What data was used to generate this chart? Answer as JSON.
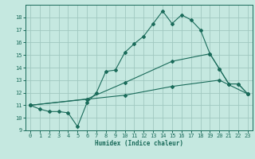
{
  "xlabel": "Humidex (Indice chaleur)",
  "bg_color": "#c5e8e0",
  "grid_color": "#a0c8c0",
  "line_color": "#1a6b5a",
  "xlim": [
    -0.5,
    23.5
  ],
  "ylim": [
    9,
    19
  ],
  "yticks": [
    9,
    10,
    11,
    12,
    13,
    14,
    15,
    16,
    17,
    18
  ],
  "xticks": [
    0,
    1,
    2,
    3,
    4,
    5,
    6,
    7,
    8,
    9,
    10,
    11,
    12,
    13,
    14,
    15,
    16,
    17,
    18,
    19,
    20,
    21,
    22,
    23
  ],
  "lines": [
    {
      "x": [
        0,
        1,
        2,
        3,
        4,
        5,
        6,
        7,
        8,
        9,
        10,
        11,
        12,
        13,
        14,
        15,
        16,
        17,
        18,
        19,
        20,
        21,
        22,
        23
      ],
      "y": [
        11,
        10.7,
        10.5,
        10.5,
        10.4,
        9.3,
        11.2,
        12.0,
        13.7,
        13.8,
        15.2,
        15.9,
        16.5,
        17.5,
        18.5,
        17.5,
        18.2,
        17.8,
        17.0,
        15.1,
        13.9,
        12.7,
        12.7,
        11.9
      ]
    },
    {
      "x": [
        0,
        6,
        10,
        15,
        19,
        20,
        21,
        22,
        23
      ],
      "y": [
        11,
        11.5,
        12.8,
        14.5,
        15.1,
        13.9,
        12.7,
        12.7,
        11.9
      ]
    },
    {
      "x": [
        0,
        10,
        15,
        20,
        23
      ],
      "y": [
        11,
        11.8,
        12.5,
        13.0,
        11.9
      ]
    }
  ]
}
